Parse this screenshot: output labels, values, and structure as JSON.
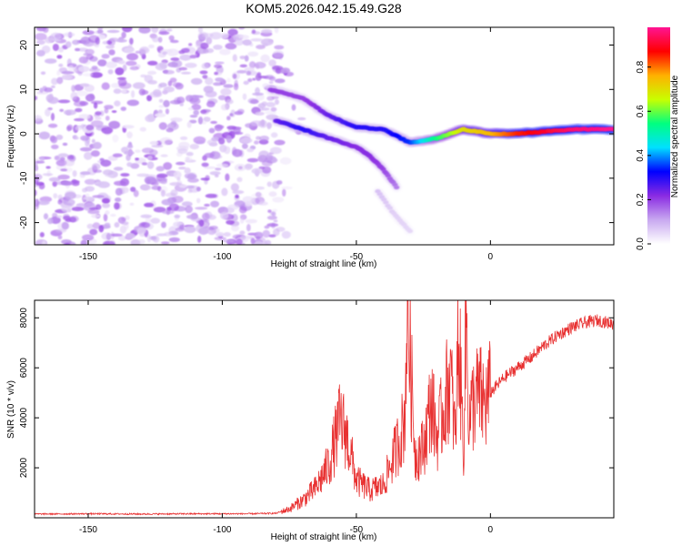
{
  "title": "KOM5.2026.042.15.49.G28",
  "chart_data": [
    {
      "type": "heatmap",
      "title": "",
      "xlabel": "Height of straight line (km)",
      "ylabel": "Frequency (Hz)",
      "xlim": [
        -170,
        46
      ],
      "ylim": [
        -25,
        24
      ],
      "xticks": [
        -150,
        -100,
        -50,
        0
      ],
      "yticks": [
        20,
        10,
        0,
        -10,
        -20
      ],
      "grid": false,
      "colorbar": {
        "label": "Normalized spectral amplitude",
        "range": [
          0,
          0.98
        ],
        "ticks": [
          0.0,
          0.2,
          0.4,
          0.6,
          0.8
        ],
        "colormap": [
          "#ffffff",
          "#c8a8f0",
          "#8a2be2",
          "#0000ff",
          "#00e0ff",
          "#00ff80",
          "#c8ff00",
          "#ffb000",
          "#ff0000",
          "#ff1493"
        ]
      },
      "noise_region": {
        "x_range": [
          -170,
          -78
        ],
        "y_range": [
          -25,
          24
        ],
        "typical_amplitude": 0.1
      },
      "ridges": [
        {
          "name": "main-signal",
          "x": [
            -82,
            -70,
            -60,
            -50,
            -40,
            -30,
            -20,
            -10,
            0,
            10,
            20,
            30,
            46
          ],
          "y": [
            10,
            8,
            4,
            1.5,
            1,
            -2,
            -1,
            1,
            0,
            0,
            0.5,
            1,
            1
          ],
          "amplitude": [
            0.2,
            0.2,
            0.25,
            0.3,
            0.3,
            0.35,
            0.55,
            0.7,
            0.75,
            0.85,
            0.9,
            0.95,
            0.98
          ]
        },
        {
          "name": "lower-branch",
          "x": [
            -80,
            -70,
            -60,
            -50,
            -45,
            -40,
            -35
          ],
          "y": [
            3,
            1,
            -1,
            -3,
            -5,
            -8,
            -12
          ],
          "amplitude": [
            0.25,
            0.3,
            0.25,
            0.22,
            0.22,
            0.2,
            0.15
          ]
        },
        {
          "name": "faint-tail",
          "x": [
            -42,
            -36,
            -30
          ],
          "y": [
            -13,
            -18,
            -22
          ],
          "amplitude": [
            0.08,
            0.06,
            0.05
          ]
        }
      ]
    },
    {
      "type": "line",
      "title": "",
      "xlabel": "Height of straight line (km)",
      "ylabel": "SNR (10 * v/v)",
      "xlim": [
        -170,
        46
      ],
      "ylim": [
        0,
        8700
      ],
      "xticks": [
        -150,
        -100,
        -50,
        0
      ],
      "yticks": [
        2000,
        4000,
        6000,
        8000
      ],
      "color": "#e83030",
      "grid": false,
      "series": [
        {
          "name": "SNR",
          "x": [
            -170,
            -150,
            -130,
            -110,
            -90,
            -80,
            -75,
            -70,
            -65,
            -60,
            -56,
            -54,
            -52,
            -50,
            -45,
            -40,
            -35,
            -32,
            -31,
            -30,
            -28,
            -25,
            -22,
            -20,
            -18,
            -15,
            -13,
            -12,
            -10,
            -9,
            -8,
            -6,
            -4,
            -2,
            0,
            5,
            10,
            15,
            20,
            25,
            30,
            35,
            40,
            46
          ],
          "y": [
            150,
            160,
            150,
            160,
            160,
            180,
            350,
            700,
            1200,
            2200,
            3900,
            3400,
            2500,
            1500,
            1100,
            1300,
            2800,
            3900,
            8500,
            6500,
            2500,
            2800,
            4700,
            3200,
            4100,
            5700,
            3100,
            7600,
            2800,
            8200,
            3800,
            4800,
            4900,
            4500,
            5000,
            5600,
            6000,
            6400,
            6900,
            7300,
            7600,
            7800,
            7900,
            7750
          ]
        }
      ]
    }
  ]
}
